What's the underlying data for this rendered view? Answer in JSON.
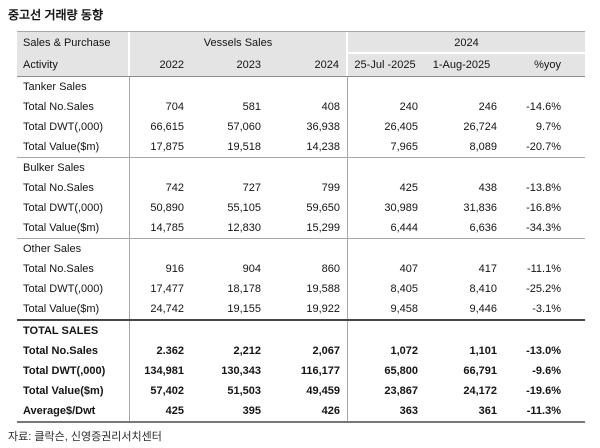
{
  "title": "중고선 거래량 동향",
  "source": "자료: 클락슨, 신영증권리서치센터",
  "colors": {
    "header_bg": "#e4e4e4",
    "grid_line": "#a8a8a8",
    "total_separator": "#464646"
  },
  "table": {
    "header": {
      "col1_line1": "Sales & Purchase",
      "col1_line2": "Activity",
      "group1": "Vessels Sales",
      "group2": "2024",
      "subcols": [
        "2022",
        "2023",
        "2024",
        "25-Jul -2025",
        "1-Aug-2025",
        "%yoy"
      ]
    },
    "sections": [
      {
        "name": "Tanker Sales",
        "bold": false,
        "rows": [
          {
            "label": "Total No.Sales",
            "values": [
              "704",
              "581",
              "408",
              "240",
              "246",
              "-14.6%"
            ]
          },
          {
            "label": "Total DWT(,000)",
            "values": [
              "66,615",
              "57,060",
              "36,938",
              "26,405",
              "26,724",
              "9.7%"
            ]
          },
          {
            "label": "Total Value($m)",
            "values": [
              "17,875",
              "19,518",
              "14,238",
              "7,965",
              "8,089",
              "-20.7%"
            ]
          }
        ]
      },
      {
        "name": "Bulker Sales",
        "bold": false,
        "rows": [
          {
            "label": "Total No.Sales",
            "values": [
              "742",
              "727",
              "799",
              "425",
              "438",
              "-13.8%"
            ]
          },
          {
            "label": "Total DWT(,000)",
            "values": [
              "50,890",
              "55,105",
              "59,650",
              "30,989",
              "31,836",
              "-16.8%"
            ]
          },
          {
            "label": "Total Value($m)",
            "values": [
              "14,785",
              "12,830",
              "15,299",
              "6,444",
              "6,636",
              "-34.3%"
            ]
          }
        ]
      },
      {
        "name": "Other Sales",
        "bold": false,
        "rows": [
          {
            "label": "Total No.Sales",
            "values": [
              "916",
              "904",
              "860",
              "407",
              "417",
              "-11.1%"
            ]
          },
          {
            "label": "Total DWT(,000)",
            "values": [
              "17,477",
              "18,178",
              "19,588",
              "8,405",
              "8,410",
              "-25.2%"
            ]
          },
          {
            "label": "Total Value($m)",
            "values": [
              "24,742",
              "19,155",
              "19,922",
              "9,458",
              "9,446",
              "-3.1%"
            ]
          }
        ]
      },
      {
        "name": "TOTAL SALES",
        "bold": true,
        "rows": [
          {
            "label": "Total No.Sales",
            "values": [
              "2.362",
              "2,212",
              "2,067",
              "1,072",
              "1,101",
              "-13.0%"
            ]
          },
          {
            "label": "Total DWT(,000)",
            "values": [
              "134,981",
              "130,343",
              "116,177",
              "65,800",
              "66,791",
              "-9.6%"
            ]
          },
          {
            "label": "Total Value($m)",
            "values": [
              "57,402",
              "51,503",
              "49,459",
              "23,867",
              "24,172",
              "-19.6%"
            ]
          },
          {
            "label": "Average$/Dwt",
            "values": [
              "425",
              "395",
              "426",
              "363",
              "361",
              "-11.3%"
            ]
          }
        ]
      }
    ]
  }
}
